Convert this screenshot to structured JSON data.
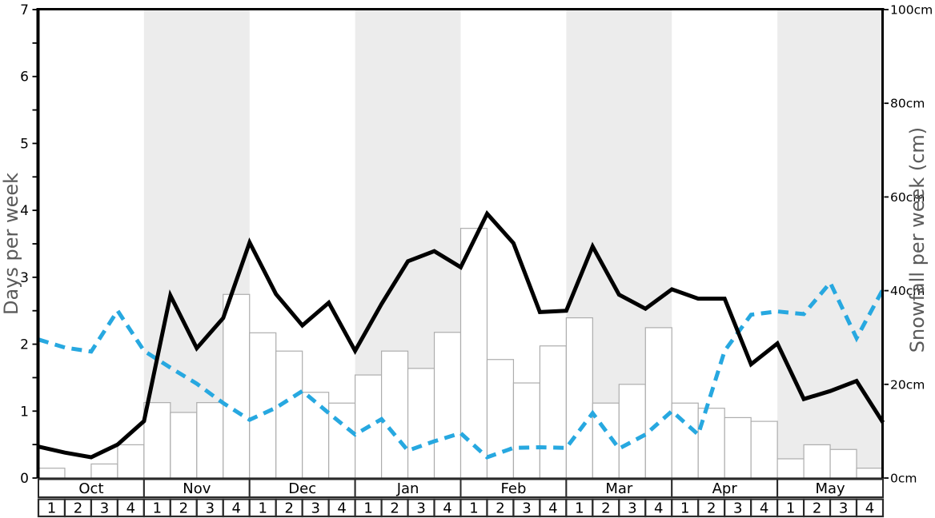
{
  "page": {
    "background": "#ffffff"
  },
  "chart_data": {
    "type": "line+bar",
    "title": "",
    "months": [
      {
        "label": "Oct",
        "shaded": false
      },
      {
        "label": "Nov",
        "shaded": true
      },
      {
        "label": "Dec",
        "shaded": false
      },
      {
        "label": "Jan",
        "shaded": true
      },
      {
        "label": "Feb",
        "shaded": false
      },
      {
        "label": "Mar",
        "shaded": true
      },
      {
        "label": "Apr",
        "shaded": false
      },
      {
        "label": "May",
        "shaded": true
      }
    ],
    "week_labels": [
      "1",
      "2",
      "3",
      "4"
    ],
    "left_axis": {
      "label": "Days per week",
      "min": 0,
      "max": 7,
      "major_ticks": [
        0,
        1,
        2,
        3,
        4,
        5,
        6,
        7
      ],
      "minor_tick_step": 0.5
    },
    "right_axis": {
      "label": "Snowfall per week (cm)",
      "min": 0,
      "max": 100,
      "ticks": [
        {
          "value": 0,
          "label": "0cm"
        },
        {
          "value": 20,
          "label": "20cm"
        },
        {
          "value": 40,
          "label": "40cm"
        },
        {
          "value": 60,
          "label": "60cm"
        },
        {
          "value": 80,
          "label": "80cm"
        },
        {
          "value": 100,
          "label": "100cm"
        }
      ]
    },
    "band_color": "#ececec",
    "series": [
      {
        "name": "snowfall-bars",
        "kind": "bar",
        "axis": "right",
        "unit": "cm",
        "fill_color": "#ffffff",
        "border_color": "#adadad",
        "values": [
          2.1,
          0,
          3,
          7.1,
          16.1,
          14,
          16.1,
          39.2,
          31,
          27.1,
          18.3,
          16,
          22,
          27.1,
          23.4,
          31.1,
          53.3,
          25.3,
          20.3,
          28.2,
          34.2,
          16,
          20,
          32.1,
          16,
          14.9,
          12.9,
          12.1,
          4.1,
          7.1,
          6.1,
          2.1
        ]
      },
      {
        "name": "blue-dashed-line",
        "kind": "line",
        "style": "dashed",
        "axis": "left",
        "color": "#27a8e0",
        "values": [
          2.07,
          1.95,
          1.89,
          2.5,
          1.9,
          1.65,
          1.41,
          1.12,
          0.87,
          1.05,
          1.3,
          0.97,
          0.65,
          0.88,
          0.41,
          0.55,
          0.67,
          0.31,
          0.45,
          0.46,
          0.45,
          0.97,
          0.44,
          0.65,
          1.0,
          0.65,
          1.9,
          2.44,
          2.49,
          2.45,
          2.92,
          2.09,
          2.82
        ]
      },
      {
        "name": "days-per-week-line",
        "kind": "line",
        "style": "solid",
        "axis": "left",
        "color": "#000000",
        "values": [
          0.47,
          0.38,
          0.31,
          0.5,
          0.85,
          2.73,
          1.94,
          2.39,
          3.52,
          2.75,
          2.28,
          2.62,
          1.9,
          2.6,
          3.24,
          3.39,
          3.15,
          3.95,
          3.51,
          2.48,
          2.5,
          3.46,
          2.74,
          2.53,
          2.82,
          2.68,
          2.68,
          1.7,
          2.01,
          1.18,
          1.3,
          1.45,
          0.83
        ]
      }
    ]
  }
}
